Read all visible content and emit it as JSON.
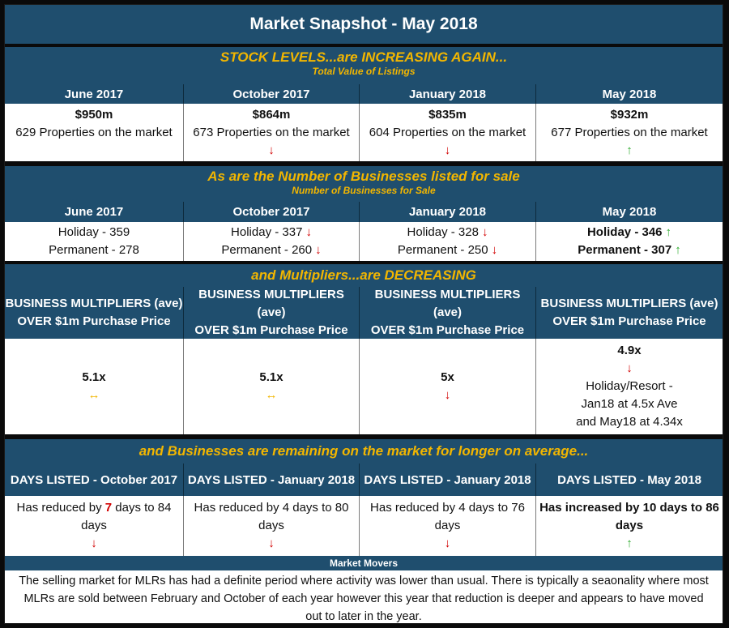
{
  "title": "Market Snapshot - May 2018",
  "section1": {
    "heading": "STOCK LEVELS...are INCREASING AGAIN...",
    "subheading": "Total Value of Listings",
    "columns": [
      {
        "period": "June 2017",
        "value": "$950m",
        "properties": "629 Properties on the market",
        "arrow": ""
      },
      {
        "period": "October 2017",
        "value": "$864m",
        "properties": "673 Properties on the market",
        "arrow": "↓"
      },
      {
        "period": "January 2018",
        "value": "$835m",
        "properties": "604 Properties on the market",
        "arrow": "↓"
      },
      {
        "period": "May 2018",
        "value": "$932m",
        "properties": "677 Properties on the market",
        "arrow": "↑"
      }
    ]
  },
  "section2": {
    "heading": "As are the Number of Businesses listed for sale",
    "subheading": "Number of Businesses for Sale",
    "columns": [
      {
        "period": "June 2017",
        "holiday": "Holiday - 359",
        "holiday_arrow": "",
        "permanent": "Permanent - 278",
        "permanent_arrow": ""
      },
      {
        "period": "October 2017",
        "holiday": "Holiday - 337",
        "holiday_arrow": "↓",
        "permanent": "Permanent - 260",
        "permanent_arrow": "↓"
      },
      {
        "period": "January 2018",
        "holiday": "Holiday - 328",
        "holiday_arrow": "↓",
        "permanent": "Permanent - 250",
        "permanent_arrow": "↓"
      },
      {
        "period": "May 2018",
        "holiday": "Holiday - 346",
        "holiday_arrow": "↑",
        "permanent": "Permanent - 307",
        "permanent_arrow": "↑"
      }
    ]
  },
  "section3": {
    "heading": "and Multipliers...are DECREASING",
    "header_line1": "BUSINESS MULTIPLIERS (ave)",
    "header_line2": "OVER $1m Purchase Price",
    "columns": [
      {
        "value": "5.1x",
        "arrow": "↔"
      },
      {
        "value": "5.1x",
        "arrow": "↔"
      },
      {
        "value": "5x",
        "arrow": "↓"
      },
      {
        "value": "4.9x",
        "arrow": "↓",
        "note1": "Holiday/Resort -",
        "note2": "Jan18 at 4.5x Ave",
        "note3": "and May18 at 4.34x"
      }
    ]
  },
  "section4": {
    "heading": "and Businesses are remaining on the market for longer on average...",
    "columns": [
      {
        "header": "DAYS LISTED - October 2017",
        "pre": "Has reduced by ",
        "num": "7",
        "post": " days to 84",
        "line2": "days",
        "arrow": "↓"
      },
      {
        "header": "DAYS LISTED - January 2018",
        "text": "Has reduced by 4 days to 80",
        "line2": "days",
        "arrow": "↓"
      },
      {
        "header": "DAYS LISTED - January 2018",
        "text": "Has reduced by 4 days to 76",
        "line2": "days",
        "arrow": "↓"
      },
      {
        "header": "DAYS LISTED - May 2018",
        "text": "Has increased by 10 days to 86",
        "line2": "days",
        "arrow": "↑"
      }
    ]
  },
  "movers": {
    "heading": "Market Movers",
    "text": "The selling market for MLRs has had a definite period where activity was lower than usual.  There is typically a seaonality where most MLRs are sold between February and October of each year however this year that reduction is deeper and appears to have moved out to later in the year."
  },
  "colors": {
    "navy": "#1f4e6e",
    "gold": "#f2b600",
    "red": "#d20000",
    "green": "#2eab2e"
  }
}
